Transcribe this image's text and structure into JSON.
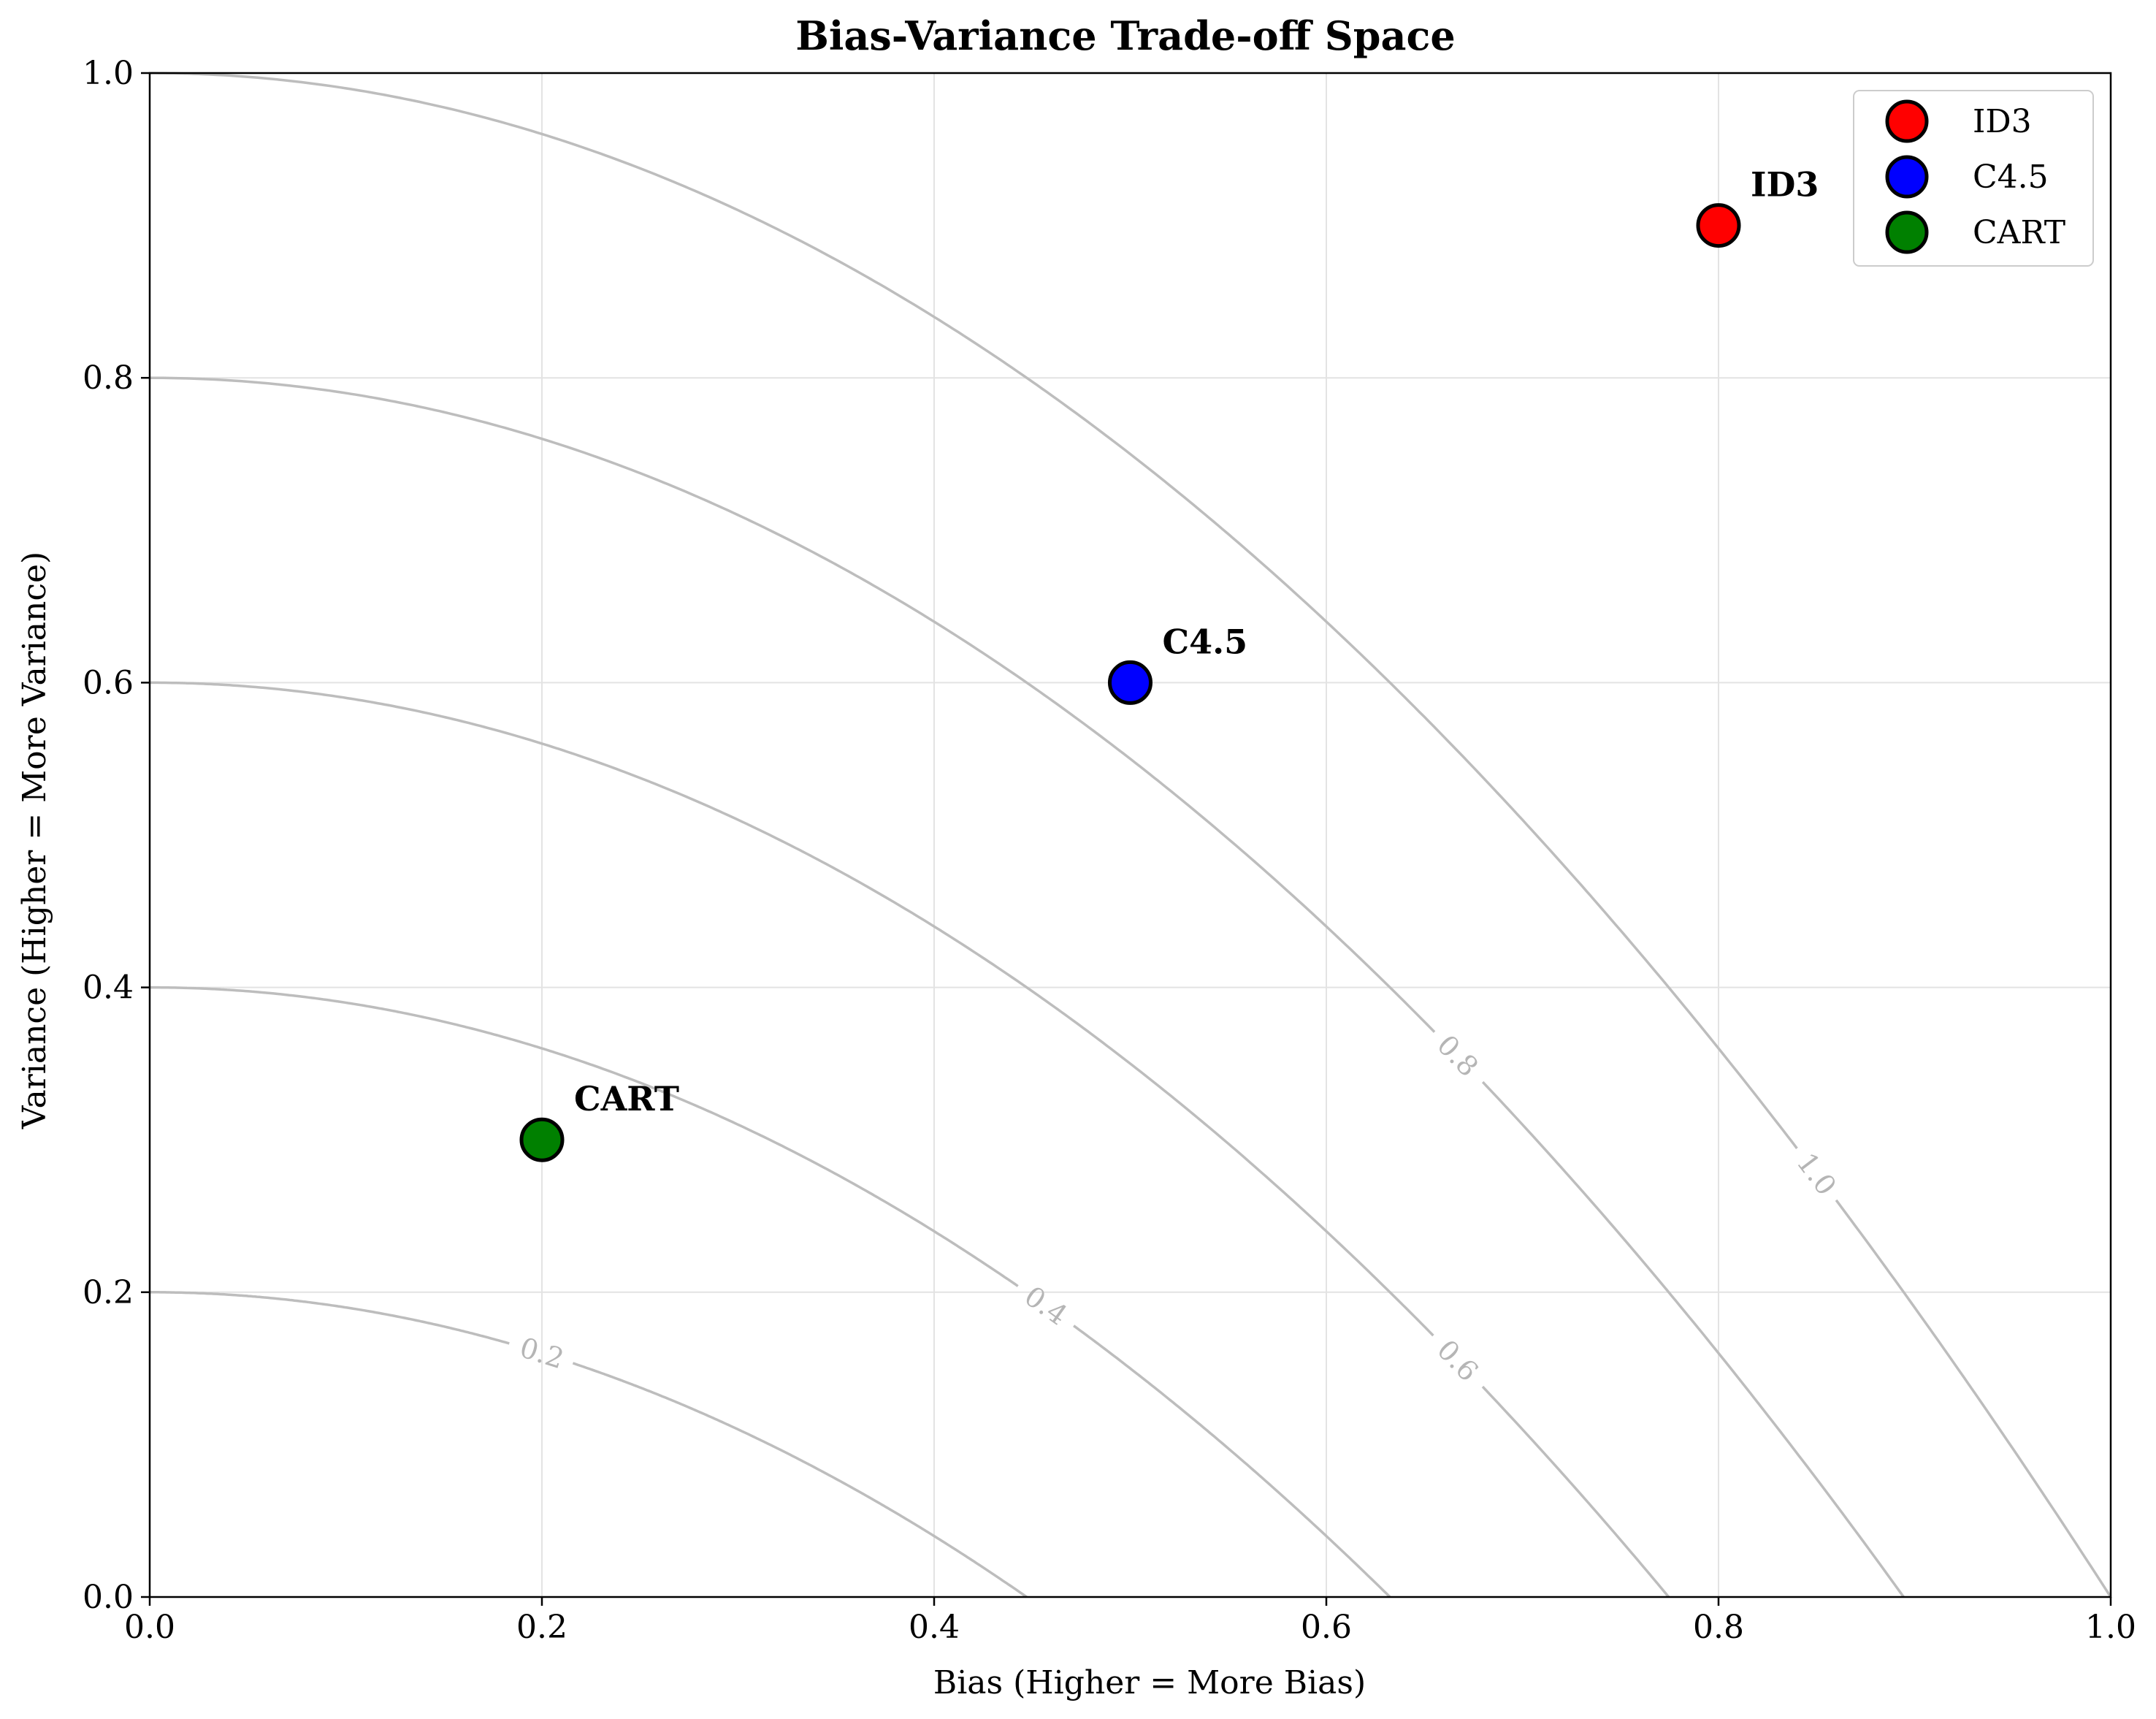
{
  "chart_data": {
    "type": "scatter",
    "title": "Bias-Variance Trade-off Space",
    "xlabel": "Bias (Higher = More Bias)",
    "ylabel": "Variance (Higher = More Variance)",
    "xlim": [
      0,
      1
    ],
    "ylim": [
      0,
      1
    ],
    "xticks": [
      0.0,
      0.2,
      0.4,
      0.6,
      0.8,
      1.0
    ],
    "yticks": [
      0.0,
      0.2,
      0.4,
      0.6,
      0.8,
      1.0
    ],
    "xtick_labels": [
      "0.0",
      "0.2",
      "0.4",
      "0.6",
      "0.8",
      "1.0"
    ],
    "ytick_labels": [
      "0.0",
      "0.2",
      "0.4",
      "0.6",
      "0.8",
      "1.0"
    ],
    "grid": true,
    "legend_position": "top-right",
    "series": [
      {
        "name": "ID3",
        "x": [
          0.8
        ],
        "y": [
          0.9
        ],
        "color": "#ff0000",
        "annotation": "ID3"
      },
      {
        "name": "C4.5",
        "x": [
          0.5
        ],
        "y": [
          0.6
        ],
        "color": "#0000ff",
        "annotation": "C4.5"
      },
      {
        "name": "CART",
        "x": [
          0.2
        ],
        "y": [
          0.3
        ],
        "color": "#008000",
        "annotation": "CART"
      }
    ],
    "contours": {
      "function": "x^2 + y",
      "levels": [
        0.2,
        0.4,
        0.6,
        0.8,
        1.0
      ],
      "labels": [
        "0.2",
        "0.4",
        "0.6",
        "0.8",
        "1.0"
      ],
      "label_positions": [
        {
          "level": 0.2,
          "x": 0.2
        },
        {
          "level": 0.4,
          "x": 0.457
        },
        {
          "level": 0.6,
          "x": 0.667
        },
        {
          "level": 0.8,
          "x": 0.667
        },
        {
          "level": 1.0,
          "x": 0.85
        }
      ],
      "color": "#bdbdbd"
    }
  }
}
